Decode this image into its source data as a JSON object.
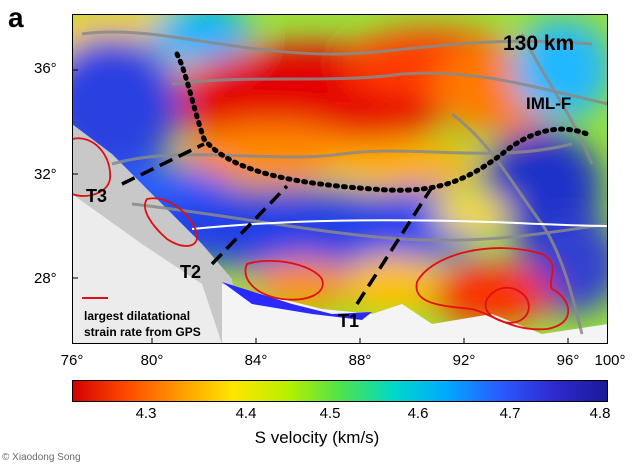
{
  "panel": {
    "letter": "a",
    "depth_label": "130 km"
  },
  "axes": {
    "lat_labels": [
      "36°",
      "32°",
      "28°"
    ],
    "lon_labels": [
      "76°",
      "80°",
      "84°",
      "88°",
      "92°",
      "96°",
      "100°"
    ]
  },
  "annotations": {
    "fault": "IML-F",
    "transects": [
      "T3",
      "T2",
      "T1"
    ],
    "legend_line1": "largest dilatational",
    "legend_line2": "strain rate from GPS"
  },
  "colorbar": {
    "title": "S velocity (km/s)",
    "ticks": [
      "4.3",
      "4.4",
      "4.5",
      "4.6",
      "4.7",
      "4.8"
    ],
    "colors": [
      "#d40000",
      "#ff4a00",
      "#ff9a00",
      "#ffe600",
      "#b8f000",
      "#4fe34a",
      "#00d8c8",
      "#00a8ff",
      "#2a5bff",
      "#2e2ad0",
      "#1a1a9a"
    ]
  },
  "credit": "© Xiaodong Song",
  "colors": {
    "strain_outline": "#e01010",
    "fault_dots": "#000000",
    "white_line": "#ffffff"
  },
  "icons": {
    "legend_line": "red-line-swatch"
  }
}
